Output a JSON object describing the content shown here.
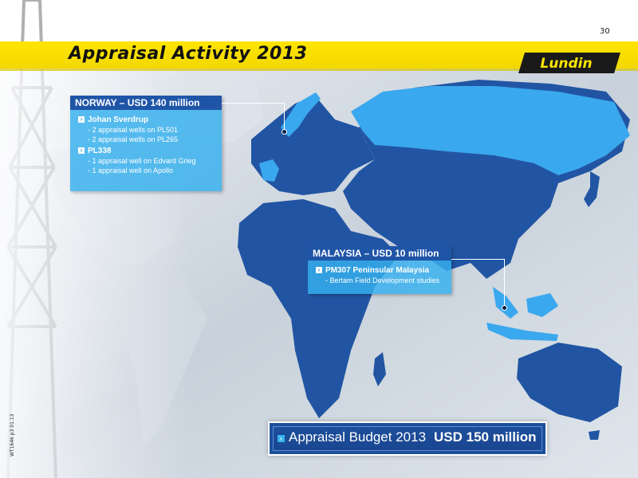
{
  "page": {
    "number": "30",
    "doc_code": "WT1646 p3 01.13"
  },
  "header": {
    "title": "Appraisal Activity 2013",
    "logo_text": "Lundin"
  },
  "norway": {
    "header": "NORWAY  –  USD 140 million",
    "groups": [
      {
        "title": "Johan Sverdrup",
        "items": [
          "- 2 appraisal wells on PL501",
          "- 2 appraisal wells on PL265"
        ]
      },
      {
        "title": "PL338",
        "items": [
          "- 1 appraisal well on Edvard Grieg",
          "- 1 appraisal well on Apollo"
        ]
      }
    ]
  },
  "malaysia": {
    "header": "MALAYSIA  –  USD 10 million",
    "groups": [
      {
        "title": "PM307 Peninsular Malaysia",
        "items": [
          "- Bertam Field Development studies"
        ]
      }
    ]
  },
  "budget": {
    "label": "Appraisal Budget 2013",
    "amount": "USD 150 million"
  },
  "colors": {
    "title_band": "#ffe500",
    "callout_header": "#1f55a7",
    "callout_body": "#34b0ee",
    "land": "#2155a3",
    "highlight_land": "#3aa8ee",
    "ocean": "#c9d2dc"
  },
  "icons": {
    "bullet": "arrow-right-icon",
    "marker": "location-dot-icon"
  }
}
